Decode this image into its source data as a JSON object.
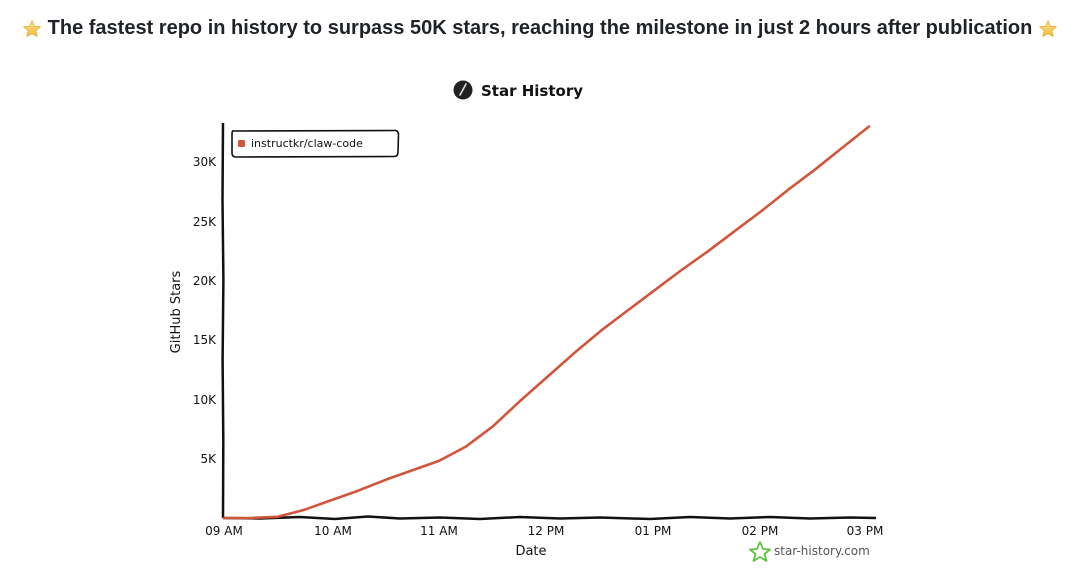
{
  "headline": {
    "text": "The fastest repo in history to surpass 50K stars, reaching the milestone in just 2 hours after publication",
    "leading_icon": "star-emoji",
    "trailing_icon": "star-emoji"
  },
  "chart": {
    "title": "Star History",
    "title_icon": "pen-circle-icon",
    "legend_label": "instructkr/claw-code",
    "series_color": "#d0553a",
    "xlabel": "Date",
    "ylabel": "GitHub Stars",
    "x_ticks": [
      "09 AM",
      "10 AM",
      "11 AM",
      "12 PM",
      "01 PM",
      "02 PM",
      "03 PM"
    ],
    "y_ticks": [
      "5K",
      "10K",
      "15K",
      "20K",
      "25K",
      "30K"
    ],
    "watermark": "star-history.com",
    "watermark_color": "#5cc53f"
  },
  "chart_data": {
    "type": "line",
    "title": "Star History",
    "xlabel": "Date",
    "ylabel": "GitHub Stars",
    "x": [
      "09:00",
      "09:15",
      "09:30",
      "09:45",
      "10:00",
      "10:15",
      "10:30",
      "10:45",
      "11:00",
      "11:15",
      "11:30",
      "11:45",
      "12:00",
      "12:15",
      "12:30",
      "12:45",
      "13:00",
      "13:15",
      "13:30",
      "13:45",
      "14:00",
      "14:15",
      "14:30",
      "14:45",
      "15:00"
    ],
    "series": [
      {
        "name": "instructkr/claw-code",
        "color": "#d0553a",
        "values": [
          0,
          0,
          100,
          700,
          1500,
          2300,
          3200,
          4000,
          4800,
          6000,
          7700,
          9800,
          11800,
          13800,
          15700,
          17400,
          19100,
          20800,
          22400,
          24100,
          25800,
          27600,
          29300,
          31100,
          32900
        ]
      }
    ],
    "xlim": [
      "09:00",
      "15:05"
    ],
    "ylim": [
      0,
      33000
    ],
    "y_tick_values": [
      5000,
      10000,
      15000,
      20000,
      25000,
      30000
    ],
    "x_tick_labels": [
      "09 AM",
      "10 AM",
      "11 AM",
      "12 PM",
      "01 PM",
      "02 PM",
      "03 PM"
    ],
    "grid": false,
    "legend_position": "top-left"
  }
}
